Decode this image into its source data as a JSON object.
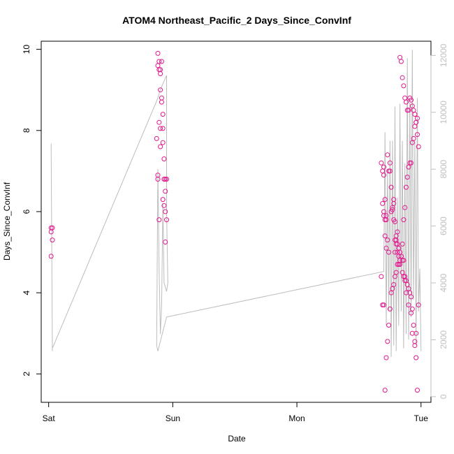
{
  "chart_data": {
    "type": "scatter",
    "title": "ATOM4 Northeast_Pacific_2 Days_Since_ConvInf",
    "xlabel": "Date",
    "ylabel": "Days_Since_ConvInf",
    "x_ticks": [
      "Sat",
      "Sun",
      "Mon",
      "Tue"
    ],
    "x_tick_values": [
      0,
      1,
      2,
      3
    ],
    "xlim": [
      -0.06,
      3.08
    ],
    "ylim": [
      1.3,
      10.2
    ],
    "y_ticks": [
      2,
      4,
      6,
      8,
      10
    ],
    "y2_lim": [
      -200,
      12500
    ],
    "y2_ticks": [
      0,
      2000,
      4000,
      6000,
      8000,
      10000,
      12000
    ],
    "grid": false,
    "colors": {
      "points": "#e0188c",
      "line": "#bdbdbd",
      "right_axis": "#bfbfbf"
    },
    "series": [
      {
        "type": "scatter",
        "axis": "left",
        "x": [
          0.02,
          0.02,
          0.03,
          0.02,
          0.03,
          0.88,
          0.89,
          0.89,
          0.9,
          0.9,
          0.88,
          0.91,
          0.9,
          0.91,
          0.87,
          0.89,
          0.9,
          0.92,
          0.92,
          0.91,
          0.92,
          0.93,
          0.93,
          0.94,
          0.94,
          0.88,
          0.9,
          0.92,
          0.93,
          0.94,
          0.94,
          0.95,
          0.88,
          0.89,
          0.95,
          2.68,
          2.69,
          2.7,
          2.7,
          2.71,
          2.69,
          2.7,
          2.71,
          2.72,
          2.72,
          2.7,
          2.71,
          2.73,
          2.72,
          2.74,
          2.75,
          2.73,
          2.74,
          2.75,
          2.76,
          2.77,
          2.78,
          2.76,
          2.77,
          2.78,
          2.79,
          2.8,
          2.81,
          2.8,
          2.82,
          2.79,
          2.81,
          2.83,
          2.82,
          2.84,
          2.85,
          2.83,
          2.86,
          2.85,
          2.87,
          2.86,
          2.88,
          2.87,
          2.89,
          2.9,
          2.88,
          2.91,
          2.92,
          2.9,
          2.93,
          2.92,
          2.94,
          2.93,
          2.95,
          2.96,
          2.95,
          2.97,
          2.96,
          2.98,
          2.97,
          2.96,
          2.95,
          2.94,
          2.93,
          2.92,
          2.91,
          2.9,
          2.89,
          2.88,
          2.87,
          2.86,
          2.85,
          2.84,
          2.83,
          2.82,
          2.81,
          2.8,
          2.79,
          2.78,
          2.77,
          2.76,
          2.75,
          2.74,
          2.73,
          2.72,
          2.71,
          2.7,
          2.69,
          2.68,
          2.83,
          2.84,
          2.85,
          2.86,
          2.87,
          2.88,
          2.89,
          2.9,
          2.91,
          2.92,
          2.93,
          2.94,
          2.95,
          2.96,
          2.97,
          2.98,
          2.78,
          2.79,
          2.8,
          2.81,
          2.82
        ],
        "y": [
          5.6,
          5.5,
          5.3,
          4.9,
          5.6,
          9.9,
          9.7,
          9.5,
          9.5,
          9.4,
          9.6,
          9.7,
          9.0,
          8.8,
          7.8,
          8.2,
          8.05,
          8.05,
          7.7,
          8.7,
          8.4,
          7.3,
          6.8,
          6.8,
          6.5,
          6.9,
          7.6,
          6.3,
          6.15,
          6.0,
          5.25,
          5.8,
          6.8,
          5.8,
          6.8,
          7.2,
          7.0,
          6.9,
          7.1,
          6.3,
          6.2,
          6.0,
          5.8,
          5.9,
          5.8,
          5.9,
          5.4,
          5.3,
          5.1,
          5.0,
          7.2,
          7.4,
          7.0,
          7.0,
          6.6,
          6.1,
          6.3,
          6.0,
          6.05,
          5.8,
          5.3,
          5.3,
          5.5,
          5.2,
          5.1,
          5.0,
          5.0,
          5.0,
          4.9,
          4.9,
          4.8,
          4.7,
          4.8,
          4.5,
          4.4,
          4.4,
          4.3,
          4.3,
          4.2,
          4.1,
          4.0,
          4.0,
          3.9,
          3.7,
          3.6,
          3.5,
          3.2,
          3.0,
          2.8,
          2.4,
          2.7,
          1.6,
          3.0,
          3.7,
          8.3,
          8.2,
          8.1,
          7.8,
          7.7,
          7.2,
          7.2,
          7.1,
          6.85,
          6.6,
          6.1,
          5.8,
          5.2,
          4.9,
          4.8,
          4.7,
          4.7,
          4.5,
          4.4,
          4.2,
          4.1,
          4.0,
          3.6,
          3.2,
          2.8,
          2.4,
          1.6,
          3.7,
          3.7,
          4.4,
          9.8,
          9.7,
          9.3,
          9.1,
          8.8,
          8.7,
          8.5,
          8.5,
          8.8,
          8.75,
          8.6,
          8.5,
          8.4,
          8.2,
          7.9,
          7.6,
          6.2,
          5.75,
          5.4,
          5.2,
          5.1
        ]
      },
      {
        "type": "line",
        "axis": "right",
        "x": [
          0.02,
          0.03,
          0.03,
          0.88,
          0.9,
          0.91,
          0.94,
          0.95,
          0.95,
          0.96,
          0.95,
          0.93,
          0.92,
          0.91,
          0.9,
          0.89,
          0.88,
          0.87,
          0.88,
          0.95,
          2.7,
          2.71,
          2.72,
          2.73,
          2.74,
          2.75,
          2.76,
          2.77,
          2.78,
          2.79,
          2.8,
          2.81,
          2.82,
          2.83,
          2.84,
          2.85,
          2.86,
          2.87,
          2.88,
          2.89,
          2.9,
          2.91,
          2.92,
          2.93,
          2.94,
          2.95,
          2.96,
          2.97,
          2.98,
          2.99,
          3.0
        ],
        "y": [
          8900,
          1600,
          1700,
          10500,
          10800,
          10900,
          11200,
          11300,
          6500,
          4000,
          3700,
          4000,
          6800,
          3200,
          2200,
          4500,
          8000,
          1800,
          1600,
          2800,
          4400,
          9300,
          2500,
          8000,
          3000,
          9000,
          1400,
          9000,
          1800,
          10200,
          1600,
          7000,
          2500,
          10300,
          3000,
          9000,
          1700,
          8200,
          2200,
          11900,
          2000,
          10500,
          2800,
          12200,
          3400,
          9000,
          1800,
          10500,
          3000,
          4500,
          1600
        ]
      }
    ]
  }
}
